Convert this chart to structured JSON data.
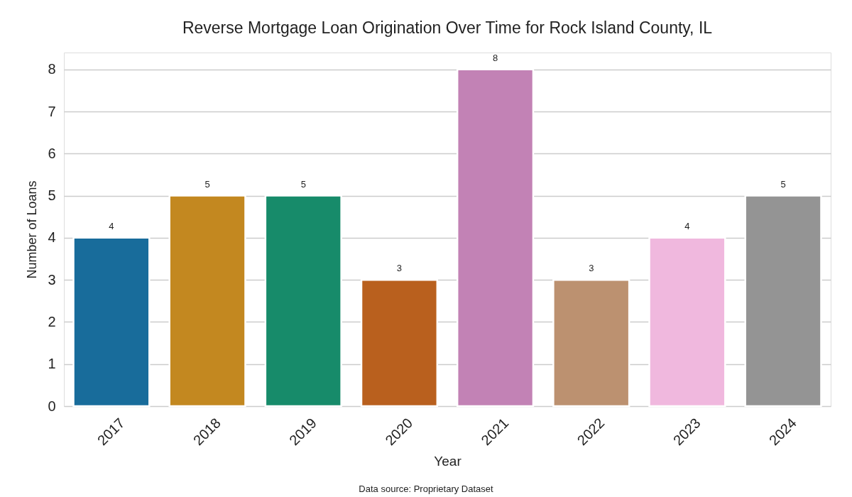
{
  "chart_data": {
    "type": "bar",
    "title": "Reverse Mortgage Loan Origination Over Time for Rock Island County, IL",
    "xlabel": "Year",
    "ylabel": "Number of Loans",
    "categories": [
      "2017",
      "2018",
      "2019",
      "2020",
      "2021",
      "2022",
      "2023",
      "2024"
    ],
    "values": [
      4,
      5,
      5,
      3,
      8,
      3,
      4,
      5
    ],
    "colors": [
      "#186c9b",
      "#c38820",
      "#178b6a",
      "#b9601e",
      "#c282b5",
      "#bc9170",
      "#f0b8de",
      "#949494"
    ],
    "ylim": [
      0,
      8.4
    ],
    "yticks": [
      0,
      1,
      2,
      3,
      4,
      5,
      6,
      7,
      8
    ],
    "grid": "y",
    "data_labels": true,
    "annotations": [
      "Data source: Proprietary Dataset"
    ]
  }
}
